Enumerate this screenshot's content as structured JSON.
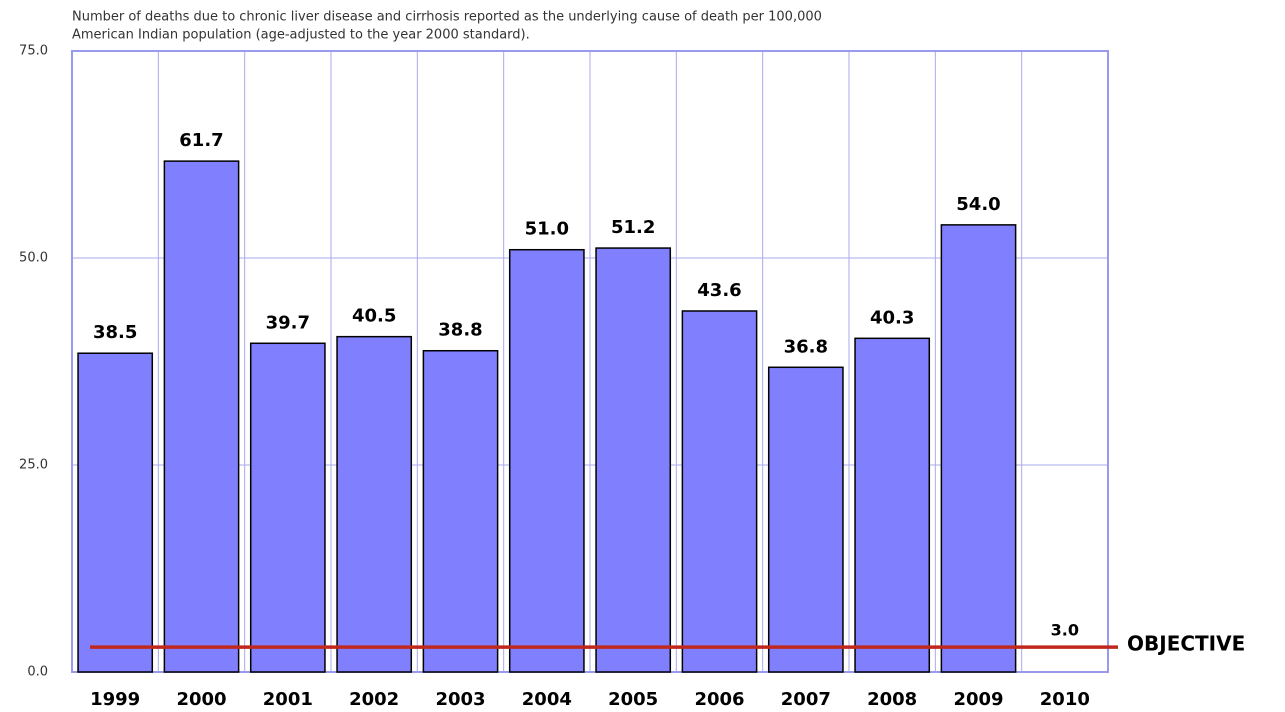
{
  "chart_data": {
    "type": "bar",
    "title": [
      "Number of deaths due to chronic liver disease and cirrhosis reported as the underlying cause of death per 100,000",
      "American Indian population (age-adjusted to the year 2000 standard)."
    ],
    "categories": [
      "1999",
      "2000",
      "2001",
      "2002",
      "2003",
      "2004",
      "2005",
      "2006",
      "2007",
      "2008",
      "2009",
      "2010"
    ],
    "values": [
      38.5,
      61.7,
      39.7,
      40.5,
      38.8,
      51.0,
      51.2,
      43.6,
      36.8,
      40.3,
      54.0,
      null
    ],
    "value_labels": [
      "38.5",
      "61.7",
      "39.7",
      "40.5",
      "38.8",
      "51.0",
      "51.2",
      "43.6",
      "36.8",
      "40.3",
      "54.0",
      null
    ],
    "color": "#8080ff",
    "ylim": [
      0,
      75
    ],
    "yticks": [
      {
        "value": 0,
        "label": "0.0"
      },
      {
        "value": 25,
        "label": "25.0"
      },
      {
        "value": 50,
        "label": "50.0"
      },
      {
        "value": 75,
        "label": "75.0"
      }
    ],
    "grid": true,
    "objective": {
      "name": "OBJECTIVE",
      "value": 3.0,
      "value_label": "3.0",
      "color": "#c0281e"
    }
  }
}
